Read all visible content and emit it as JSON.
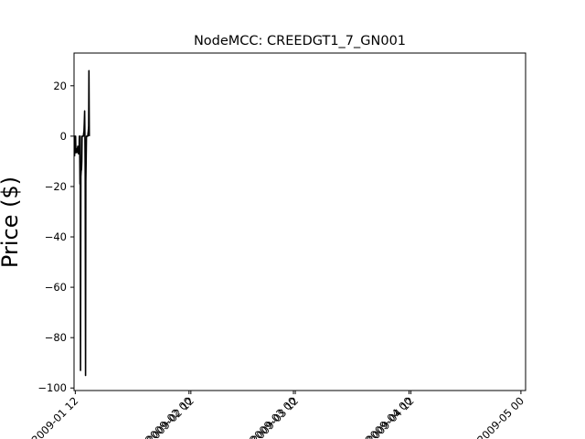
{
  "chart_data": {
    "type": "line",
    "title": "NodeMCC: CREEDGT1_7_GN001",
    "xlabel": "",
    "ylabel": "Price ($)",
    "ylim": [
      -101,
      33
    ],
    "xlim": [
      "2009-01-01 04:00",
      "2009-05-02 06:00"
    ],
    "yticks": [
      20,
      0,
      -20,
      -40,
      -60,
      -80,
      -100
    ],
    "ytick_labels": [
      "20",
      "0",
      "−20",
      "−40",
      "−60",
      "−80",
      "−100"
    ],
    "xticks": [
      "2009-01-01 12:00",
      "2009-02-01 00:00",
      "2009-02-01 12:00",
      "2009-03-01 00:00",
      "2009-03-01 12:00",
      "2009-04-01 00:00",
      "2009-04-01 12:00",
      "2009-05-01 00:00"
    ],
    "xtick_labels": [
      "2009-01 12",
      "2009-02 00",
      "2009-02 12",
      "2009-03 00",
      "2009-03 12",
      "2009-04 00",
      "2009-04 12",
      "2009-05 00"
    ],
    "grid": false,
    "series": [
      {
        "color": "#000000",
        "x": [
          "2009-01-01 07:00",
          "2009-01-01 08:00",
          "2009-01-01 09:00",
          "2009-01-01 10:00",
          "2009-01-01 11:00",
          "2009-01-01 12:00",
          "2009-01-01 13:00",
          "2009-01-01 14:00",
          "2009-01-01 16:00",
          "2009-01-01 18:00",
          "2009-01-01 20:00",
          "2009-01-01 22:00",
          "2009-01-02 00:00",
          "2009-01-02 02:00",
          "2009-01-02 04:00",
          "2009-01-02 06:00",
          "2009-01-02 08:00",
          "2009-01-02 10:00",
          "2009-01-02 12:00",
          "2009-01-02 14:00",
          "2009-01-02 16:00",
          "2009-01-02 18:00",
          "2009-01-02 20:00",
          "2009-01-02 22:00",
          "2009-01-03 00:00",
          "2009-01-03 02:00",
          "2009-01-03 04:00",
          "2009-01-03 06:00",
          "2009-01-03 08:00",
          "2009-01-03 10:00",
          "2009-01-03 12:00",
          "2009-01-03 14:00",
          "2009-01-03 16:00",
          "2009-01-03 18:00",
          "2009-01-03 20:00",
          "2009-01-03 22:00",
          "2009-01-04 00:00",
          "2009-01-04 02:00",
          "2009-01-04 04:00",
          "2009-01-04 06:00",
          "2009-01-04 08:00",
          "2009-01-04 10:00",
          "2009-01-04 12:00",
          "2009-01-04 14:00",
          "2009-01-04 16:00",
          "2009-01-04 18:00",
          "2009-01-04 20:00",
          "2009-01-04 22:00",
          "2009-01-05 00:00",
          "2009-01-05 02:00",
          "2009-01-05 04:00",
          "2009-01-05 06:00"
        ],
        "y": [
          -8,
          -7,
          0,
          0,
          0,
          -6,
          0,
          0,
          -6.5,
          -6.5,
          -6.5,
          -6.5,
          -5,
          -5,
          -4,
          -4.5,
          -7,
          -7,
          -7,
          0,
          0,
          -19,
          0,
          -93,
          -16,
          -14,
          -13,
          -10,
          0,
          0,
          0,
          0,
          0,
          1,
          2,
          5,
          10,
          0,
          -15,
          -95,
          -18,
          -8,
          0,
          0,
          0,
          0,
          0,
          1,
          2,
          4,
          26,
          0
        ]
      }
    ]
  }
}
